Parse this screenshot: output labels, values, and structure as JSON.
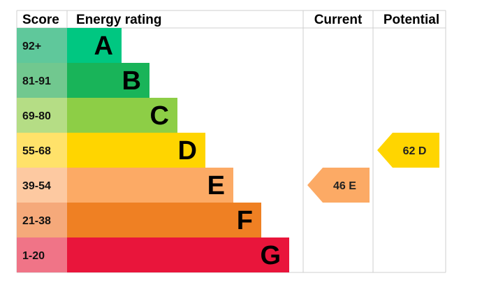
{
  "chart_data": {
    "type": "bar",
    "headers": {
      "score": "Score",
      "energy_rating": "Energy rating",
      "current": "Current",
      "potential": "Potential"
    },
    "bands": [
      {
        "letter": "A",
        "range": "92+",
        "color": "#00c781",
        "score_color": "#5fc89b"
      },
      {
        "letter": "B",
        "range": "81-91",
        "color": "#19b459",
        "score_color": "#71c88f"
      },
      {
        "letter": "C",
        "range": "69-80",
        "color": "#8dce46",
        "score_color": "#b5dd85"
      },
      {
        "letter": "D",
        "range": "55-68",
        "color": "#ffd500",
        "score_color": "#ffe26a"
      },
      {
        "letter": "E",
        "range": "39-54",
        "color": "#fcaa65",
        "score_color": "#fdc9a1"
      },
      {
        "letter": "F",
        "range": "21-38",
        "color": "#ef8023",
        "score_color": "#f5a97a"
      },
      {
        "letter": "G",
        "range": "1-20",
        "color": "#e9153b",
        "score_color": "#f07487"
      }
    ],
    "current": {
      "value": 46,
      "band": "E",
      "label": "46  E",
      "color": "#fcaa65"
    },
    "potential": {
      "value": 62,
      "band": "D",
      "label": "62  D",
      "color": "#ffd500"
    }
  }
}
